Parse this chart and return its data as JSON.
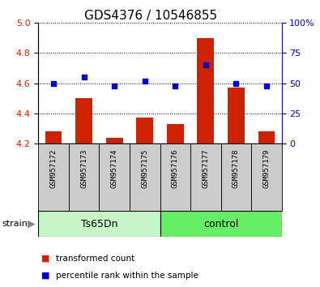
{
  "title": "GDS4376 / 10546855",
  "samples": [
    "GSM957172",
    "GSM957173",
    "GSM957174",
    "GSM957175",
    "GSM957176",
    "GSM957177",
    "GSM957178",
    "GSM957179"
  ],
  "red_values": [
    4.28,
    4.5,
    4.24,
    4.37,
    4.33,
    4.9,
    4.57,
    4.28
  ],
  "blue_values": [
    50,
    55,
    48,
    52,
    48,
    65,
    50,
    48
  ],
  "ylim_left": [
    4.2,
    5.0
  ],
  "ylim_right": [
    0,
    100
  ],
  "yticks_left": [
    4.2,
    4.4,
    4.6,
    4.8,
    5.0
  ],
  "yticks_right": [
    0,
    25,
    50,
    75,
    100
  ],
  "ytick_labels_right": [
    "0",
    "25",
    "50",
    "75",
    "100%"
  ],
  "groups": [
    {
      "label": "Ts65Dn",
      "color": "#c8f5c8"
    },
    {
      "label": "control",
      "color": "#66ee66"
    }
  ],
  "bar_color": "#cc2200",
  "dot_color": "#0000cc",
  "bar_bottom": 4.2,
  "left_axis_color": "#cc2200",
  "right_axis_color": "#0000cc",
  "legend_red_label": "transformed count",
  "legend_blue_label": "percentile rank within the sample",
  "strain_label": "strain",
  "title_fontsize": 11,
  "tick_fontsize": 8,
  "sample_fontsize": 6.5,
  "group_fontsize": 9,
  "legend_fontsize": 7.5
}
